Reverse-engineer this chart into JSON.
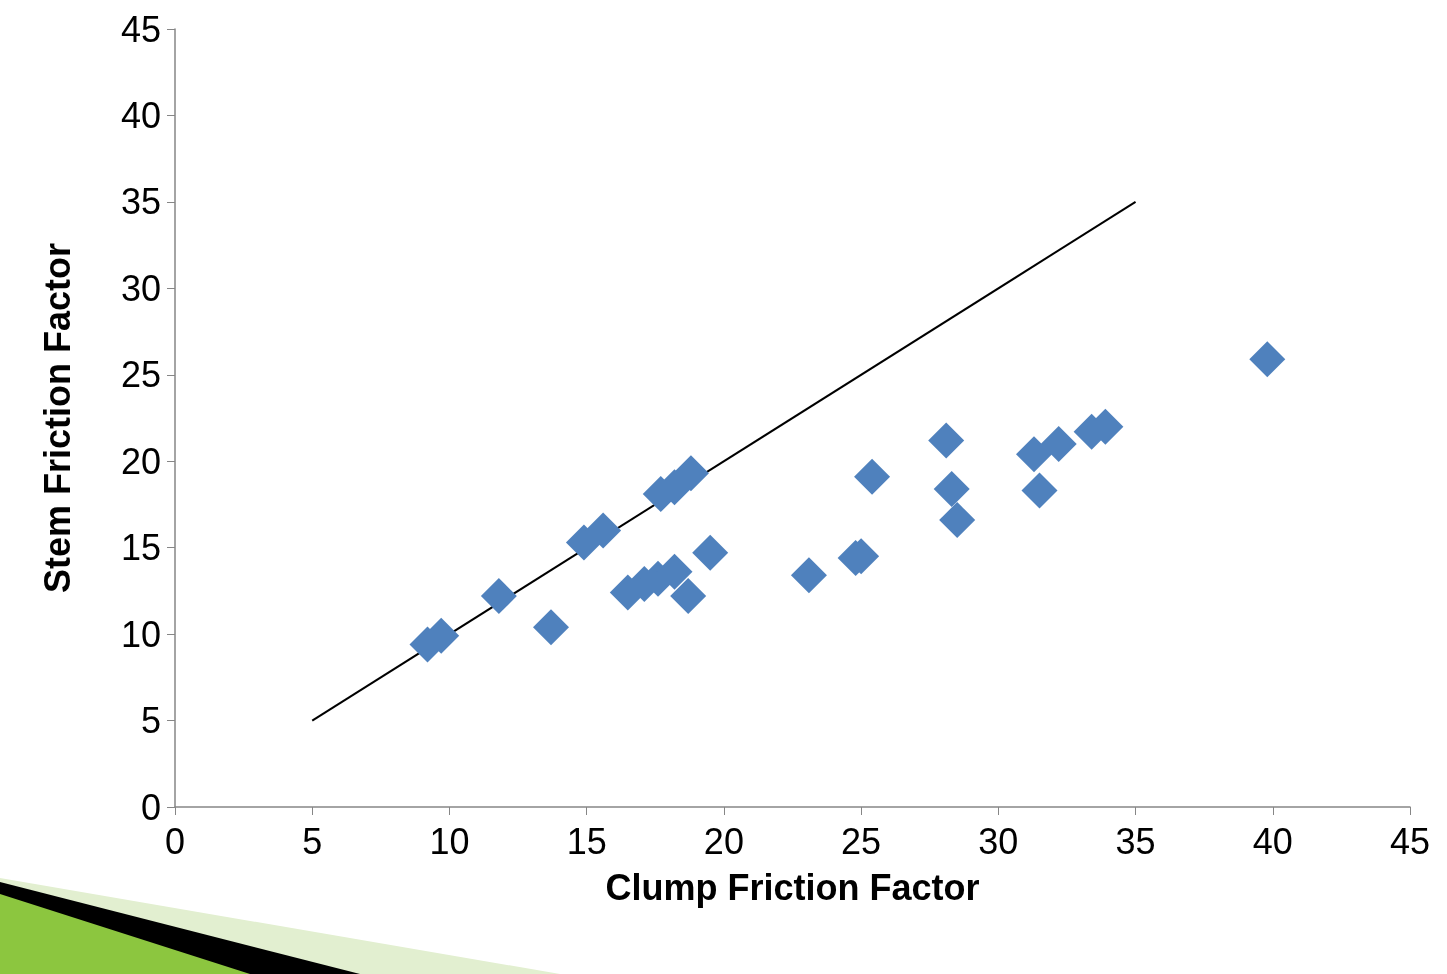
{
  "chart_data": {
    "type": "scatter",
    "xlabel": "Clump Friction Factor",
    "ylabel": "Stem Friction Factor",
    "xlim": [
      0,
      45
    ],
    "xticks": [
      0,
      5,
      10,
      15,
      20,
      25,
      30,
      35,
      40,
      45
    ],
    "ylim": [
      0,
      45
    ],
    "yticks": [
      0,
      5,
      10,
      15,
      20,
      25,
      30,
      35,
      40,
      45
    ],
    "grid": false,
    "marker": "diamond",
    "series": [
      {
        "color": "#4f81bd",
        "x": [
          9.2,
          9.7,
          11.8,
          13.7,
          14.9,
          15.6,
          16.5,
          17.1,
          17.6,
          18.2,
          17.7,
          18.2,
          18.8,
          18.7,
          19.5,
          23.1,
          24.8,
          25.0,
          25.4,
          28.1,
          28.3,
          28.5,
          31.3,
          32.2,
          31.5,
          33.4,
          33.9,
          39.8
        ],
        "values": [
          9.4,
          9.9,
          12.2,
          10.4,
          15.3,
          16.0,
          12.4,
          12.9,
          13.2,
          13.6,
          18.1,
          18.5,
          19.3,
          12.2,
          14.7,
          13.4,
          14.4,
          14.5,
          19.1,
          21.2,
          18.4,
          16.6,
          20.4,
          21.0,
          18.3,
          21.7,
          22.0,
          25.9
        ]
      },
      {
        "type": "line",
        "color": "#000000",
        "marker": "none",
        "line_style": "solid",
        "x": [
          5,
          35
        ],
        "values": [
          5,
          35
        ]
      }
    ]
  }
}
